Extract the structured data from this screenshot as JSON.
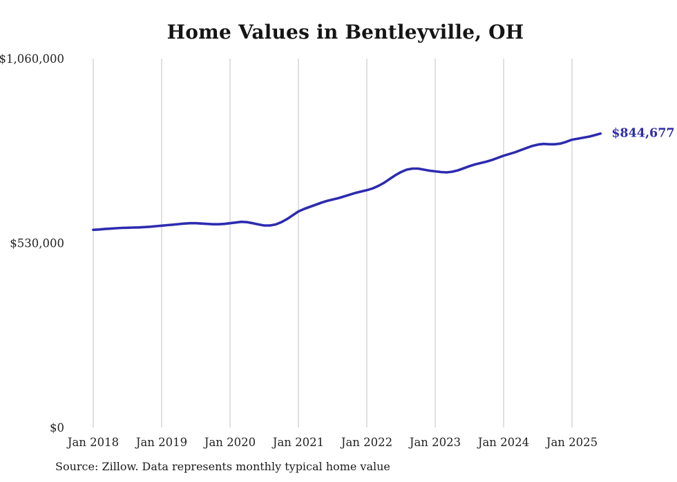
{
  "chart_data": {
    "type": "line",
    "title": "Home Values in Bentleyville, OH",
    "frequency": "monthly",
    "x_start": "Jan 2018",
    "values": [
      568000,
      569000,
      570500,
      571500,
      572500,
      573500,
      574000,
      574500,
      575000,
      576000,
      577000,
      578500,
      580000,
      581500,
      583000,
      584500,
      586000,
      587000,
      587000,
      586000,
      585000,
      584000,
      584000,
      585000,
      587000,
      589000,
      591000,
      590000,
      587000,
      583500,
      580500,
      580500,
      583500,
      590000,
      599000,
      610000,
      621000,
      628000,
      634000,
      640000,
      646000,
      651000,
      655000,
      659000,
      664000,
      669000,
      674000,
      678000,
      682000,
      687000,
      694000,
      703000,
      714000,
      725000,
      734000,
      741000,
      744000,
      744000,
      741000,
      738000,
      736000,
      734000,
      733000,
      735000,
      739000,
      745000,
      751000,
      756000,
      760000,
      764000,
      769000,
      775000,
      781000,
      786000,
      791000,
      797000,
      803000,
      809000,
      813000,
      815000,
      814000,
      814000,
      816000,
      821000,
      827000,
      830000,
      833000,
      836000,
      840000,
      844677
    ],
    "x_ticks": [
      {
        "label": "Jan 2018",
        "month": 0
      },
      {
        "label": "Jan 2019",
        "month": 12
      },
      {
        "label": "Jan 2020",
        "month": 24
      },
      {
        "label": "Jan 2021",
        "month": 36
      },
      {
        "label": "Jan 2022",
        "month": 48
      },
      {
        "label": "Jan 2023",
        "month": 60
      },
      {
        "label": "Jan 2024",
        "month": 72
      },
      {
        "label": "Jan 2025",
        "month": 84
      }
    ],
    "y_ticks": [
      {
        "label": "$0",
        "value": 0
      },
      {
        "label": "$530,000",
        "value": 530000
      },
      {
        "label": "$1,060,000",
        "value": 1060000
      }
    ],
    "ylim": [
      0,
      1060000
    ],
    "end_label": "$844,677",
    "line_color": "#2d2bb0",
    "grid_color": "#cbcbcb",
    "tick_label_color": "#222222",
    "legend": "none",
    "grid": "vertical-only"
  },
  "footer": {
    "source": "Source: Zillow. Data represents monthly typical home value"
  }
}
